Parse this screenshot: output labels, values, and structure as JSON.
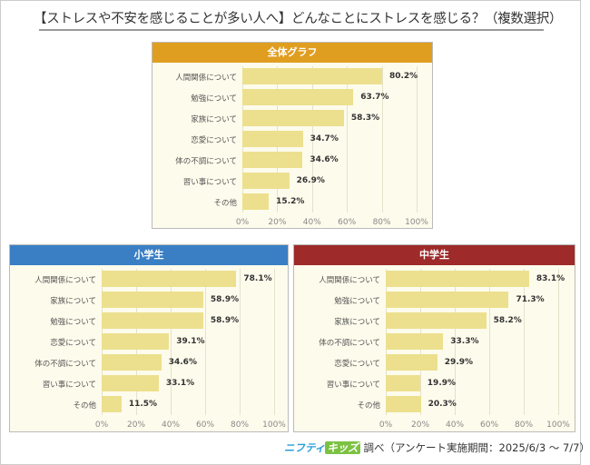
{
  "title": "【ストレスや不安を感じることが多い人へ】どんなことにストレスを感じる？（複数選択）",
  "footer": {
    "logo_part1": "ニフティ",
    "logo_part2": "キッズ",
    "text": "調べ（アンケート実施期間：2025/6/3 ～ 7/7）"
  },
  "chart_data": [
    {
      "type": "bar",
      "orientation": "horizontal",
      "title": "全体グラフ",
      "header_color": "#e09e20",
      "categories": [
        "人間関係について",
        "勉強について",
        "家族について",
        "恋愛について",
        "体の不調について",
        "習い事について",
        "その他"
      ],
      "values": [
        80.2,
        63.7,
        58.3,
        34.7,
        34.6,
        26.9,
        15.2
      ],
      "value_labels": [
        "80.2%",
        "63.7%",
        "58.3%",
        "34.7%",
        "34.6%",
        "26.9%",
        "15.2%"
      ],
      "xlim": [
        0,
        100
      ],
      "ticks": [
        "0%",
        "20%",
        "40%",
        "60%",
        "80%",
        "100%"
      ],
      "grid": true,
      "bar_color": "#ece08e"
    },
    {
      "type": "bar",
      "orientation": "horizontal",
      "title": "小学生",
      "header_color": "#3a7fc4",
      "categories": [
        "人間関係について",
        "家族について",
        "勉強について",
        "恋愛について",
        "体の不調について",
        "習い事について",
        "その他"
      ],
      "values": [
        78.1,
        58.9,
        58.9,
        39.1,
        34.6,
        33.1,
        11.5
      ],
      "value_labels": [
        "78.1%",
        "58.9%",
        "58.9%",
        "39.1%",
        "34.6%",
        "33.1%",
        "11.5%"
      ],
      "xlim": [
        0,
        100
      ],
      "ticks": [
        "0%",
        "20%",
        "40%",
        "60%",
        "80%",
        "100%"
      ],
      "grid": true,
      "bar_color": "#ece08e"
    },
    {
      "type": "bar",
      "orientation": "horizontal",
      "title": "中学生",
      "header_color": "#9e2a2a",
      "categories": [
        "人間関係について",
        "勉強について",
        "家族について",
        "体の不調について",
        "恋愛について",
        "習い事について",
        "その他"
      ],
      "values": [
        83.1,
        71.3,
        58.2,
        33.3,
        29.9,
        19.9,
        20.3
      ],
      "value_labels": [
        "83.1%",
        "71.3%",
        "58.2%",
        "33.3%",
        "29.9%",
        "19.9%",
        "20.3%"
      ],
      "xlim": [
        0,
        100
      ],
      "ticks": [
        "0%",
        "20%",
        "40%",
        "60%",
        "80%",
        "100%"
      ],
      "grid": true,
      "bar_color": "#ece08e"
    }
  ]
}
